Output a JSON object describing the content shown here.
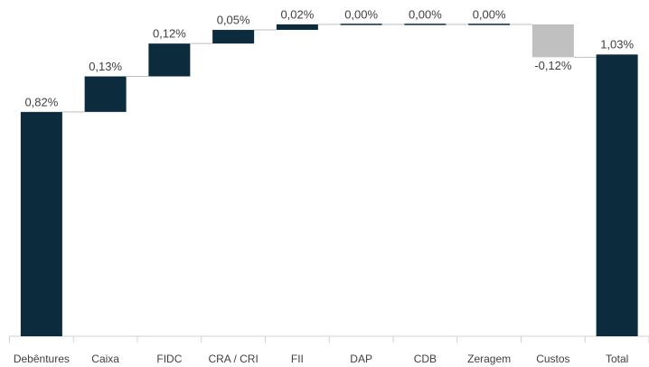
{
  "chart_data": {
    "type": "waterfall",
    "categories": [
      "Debêntures",
      "Caixa",
      "FIDC",
      "CRA / CRI",
      "FII",
      "DAP",
      "CDB",
      "Zeragem",
      "Custos"
    ],
    "values": [
      0.82,
      0.13,
      0.12,
      0.05,
      0.02,
      0.0,
      0.0,
      0.0,
      -0.12
    ],
    "value_labels": [
      "0,82%",
      "0,13%",
      "0,12%",
      "0,05%",
      "0,02%",
      "0,00%",
      "0,00%",
      "0,00%",
      "-0,12%"
    ],
    "color": "#0c2b3d",
    "negative_color": "#c0c0c0",
    "total": {
      "name": "Total",
      "value": 1.03,
      "value_label": "1,03%",
      "color": "#0c2b3d"
    }
  }
}
